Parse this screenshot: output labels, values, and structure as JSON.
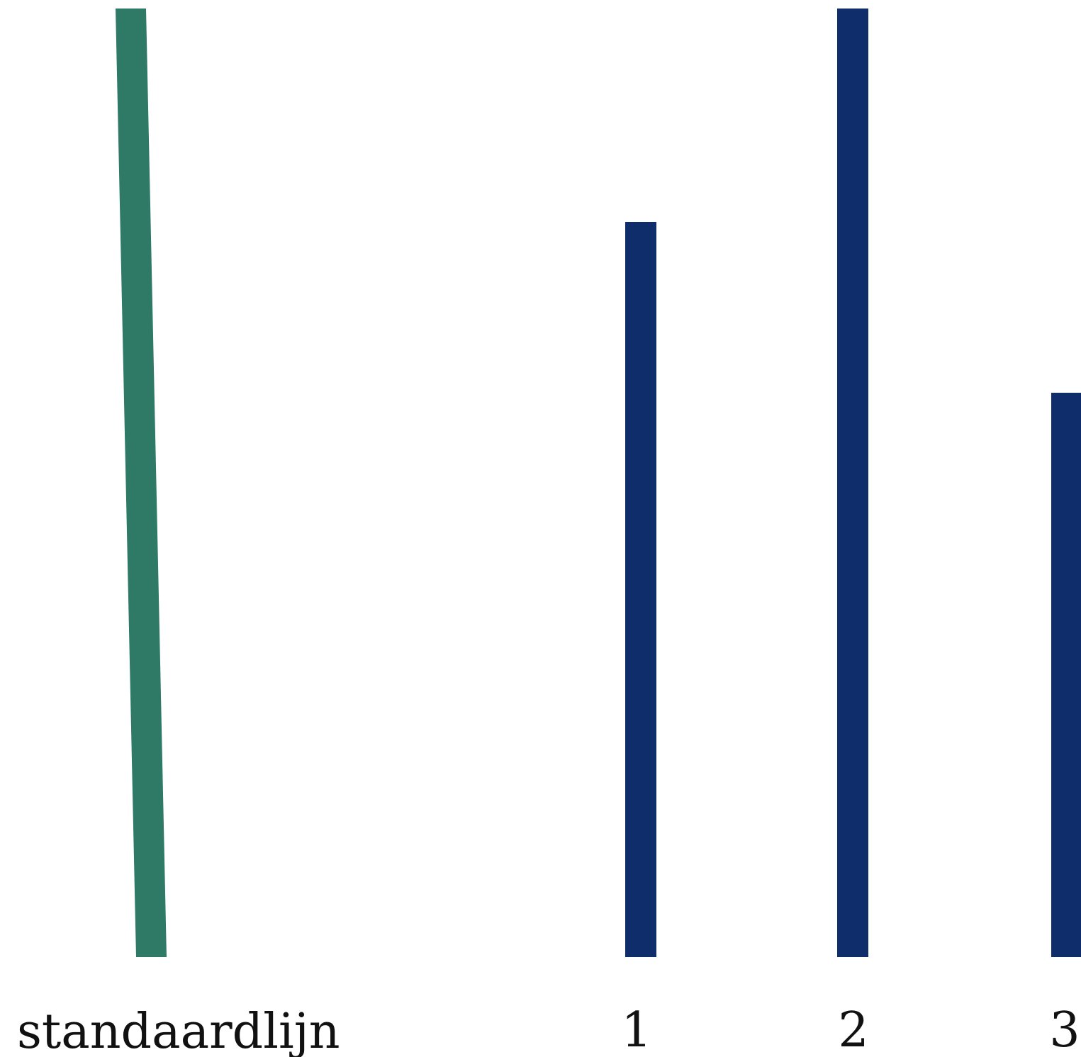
{
  "colors": {
    "background": "#ffffff",
    "standard_line": "#2e7a66",
    "comparison_lines": "#0f2d6b",
    "label_text": "#111111"
  },
  "standard_line": {
    "label": "standaardlijn",
    "relative_length": 1.0
  },
  "comparison_lines": [
    {
      "label": "1",
      "relative_length": 0.775
    },
    {
      "label": "2",
      "relative_length": 1.0
    },
    {
      "label": "3",
      "relative_length": 0.595
    }
  ]
}
